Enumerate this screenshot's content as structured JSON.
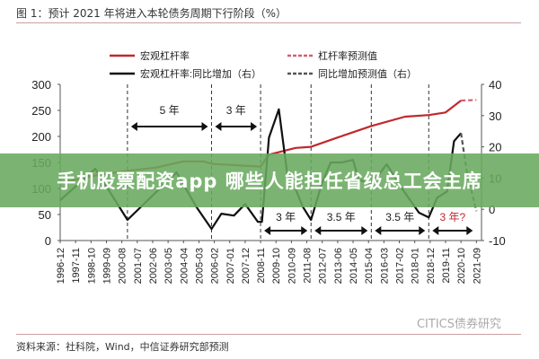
{
  "title": "图 1：预计 2021 年将进入本轮债务周期下行阶段（%）",
  "source": "资料来源：社科院，Wind，中信证券研究部预测",
  "watermark": "CITICS债券研究",
  "banner": "手机股票配资app 哪些人能担任省级总工会主席",
  "chart_data": {
    "type": "line",
    "title": "",
    "legend_position": "top",
    "x_ticks": [
      "1996-12",
      "1997-11",
      "1998-10",
      "1999-09",
      "2000-08",
      "2001-07",
      "2002-06",
      "2003-05",
      "2004-04",
      "2005-03",
      "2006-02",
      "2007-01",
      "2007-12",
      "2008-11",
      "2009-10",
      "2010-09",
      "2011-08",
      "2012-07",
      "2013-06",
      "2014-05",
      "2015-04",
      "2016-03",
      "2017-02",
      "2018-01",
      "2018-12",
      "2019-11",
      "2020-10",
      "2021-09"
    ],
    "y_left": {
      "lim": [
        0,
        300
      ],
      "ticks": [
        "0",
        "50",
        "100",
        "150",
        "200",
        "250",
        "300"
      ]
    },
    "y_right": {
      "lim": [
        -10,
        40
      ],
      "ticks": [
        "-10",
        "0",
        "10",
        "20",
        "30",
        "40"
      ]
    },
    "grid": false,
    "series": [
      {
        "name": "宏观杠杆率",
        "axis": "left",
        "color": "#c0282d",
        "style": "solid",
        "points": [
          [
            "1996-12",
            110
          ],
          [
            "1999-01",
            125
          ],
          [
            "2000-12",
            134
          ],
          [
            "2002-08",
            140
          ],
          [
            "2004-04",
            152
          ],
          [
            "2005-06",
            152
          ],
          [
            "2006-01",
            147
          ],
          [
            "2008-11",
            142
          ],
          [
            "2009-05",
            165
          ],
          [
            "2010-12",
            178
          ],
          [
            "2011-11",
            180
          ],
          [
            "2013-06",
            198
          ],
          [
            "2015-06",
            220
          ],
          [
            "2017-06",
            238
          ],
          [
            "2018-11",
            241
          ],
          [
            "2019-11",
            246
          ],
          [
            "2020-10",
            269
          ]
        ]
      },
      {
        "name": "杠杆率预测值",
        "axis": "left",
        "color": "#d06070",
        "style": "dashed",
        "points": [
          [
            "2020-10",
            269
          ],
          [
            "2021-09",
            270
          ]
        ]
      },
      {
        "name": "宏观杠杆率:同比增加（右）",
        "axis": "right",
        "color": "#111111",
        "style": "solid",
        "points": [
          [
            "1996-12",
            2.9
          ],
          [
            "1999-01",
            13
          ],
          [
            "2000-12",
            -3.4
          ],
          [
            "2003-11",
            11.8
          ],
          [
            "2005-01",
            0.9
          ],
          [
            "2005-12",
            -6.3
          ],
          [
            "2006-07",
            -1.4
          ],
          [
            "2007-04",
            -2
          ],
          [
            "2007-12",
            1.7
          ],
          [
            "2008-09",
            -4
          ],
          [
            "2008-12",
            -4
          ],
          [
            "2009-05",
            23
          ],
          [
            "2009-12",
            32
          ],
          [
            "2010-06",
            11.5
          ],
          [
            "2010-11",
            7.5
          ],
          [
            "2011-05",
            0.9
          ],
          [
            "2011-11",
            -3.4
          ],
          [
            "2012-07",
            8.6
          ],
          [
            "2013-01",
            15
          ],
          [
            "2013-09",
            15
          ],
          [
            "2014-05",
            15.8
          ],
          [
            "2014-09",
            9.5
          ],
          [
            "2015-06",
            8
          ],
          [
            "2016-05",
            14.4
          ],
          [
            "2017-04",
            6.6
          ],
          [
            "2018-04",
            -1.1
          ],
          [
            "2018-11",
            -2.6
          ],
          [
            "2019-05",
            3.7
          ],
          [
            "2019-12",
            5.7
          ],
          [
            "2020-05",
            21.8
          ],
          [
            "2020-10",
            24.4
          ]
        ]
      },
      {
        "name": "同比增加预测值（右）",
        "axis": "right",
        "color": "#555555",
        "style": "dashed",
        "points": [
          [
            "2020-10",
            24.4
          ],
          [
            "2021-02",
            12.4
          ],
          [
            "2021-09",
            -0.6
          ]
        ]
      }
    ],
    "cycle_lines": [
      "2000-12",
      "2005-12",
      "2008-11",
      "2011-11",
      "2015-06",
      "2018-11"
    ],
    "annotations": [
      {
        "label": "5 年",
        "from": "2000-12",
        "to": "2005-12",
        "row": "upper",
        "color": "#222222"
      },
      {
        "label": "3 年",
        "from": "2005-12",
        "to": "2008-11",
        "row": "upper",
        "color": "#222222"
      },
      {
        "label": "3 年",
        "from": "2008-11",
        "to": "2011-11",
        "row": "lower",
        "color": "#222222"
      },
      {
        "label": "3.5 年",
        "from": "2011-11",
        "to": "2015-06",
        "row": "lower",
        "color": "#222222"
      },
      {
        "label": "3.5 年",
        "from": "2015-06",
        "to": "2018-11",
        "row": "lower",
        "color": "#222222"
      },
      {
        "label": "3 年?",
        "from": "2018-11",
        "to": "2021-09",
        "row": "lower",
        "color": "#c0282d"
      }
    ]
  }
}
